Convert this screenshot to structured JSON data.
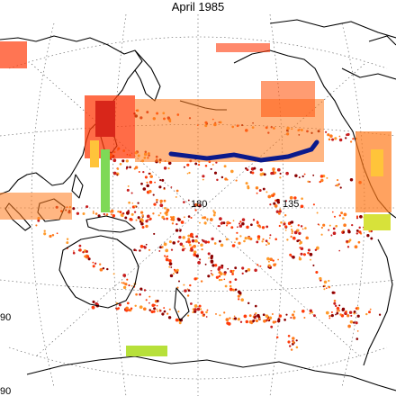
{
  "title": "April 1985",
  "graticule_labels": {
    "lon_180": "180",
    "lon_135": "135",
    "lat_90": "90",
    "lat_90_bottom": "90"
  },
  "colors": {
    "background": "#ffffff",
    "coastline": "#000000",
    "graticule": "#555555",
    "observation_scale": [
      "#8b0000",
      "#c81e1e",
      "#ff3b0a",
      "#ff7a1c",
      "#ff9a2a",
      "#ffc43a",
      "#d7e23a",
      "#7ed957",
      "#1f2fa0"
    ],
    "ship_track_navy": "#0a1a8c"
  },
  "legend": []
}
